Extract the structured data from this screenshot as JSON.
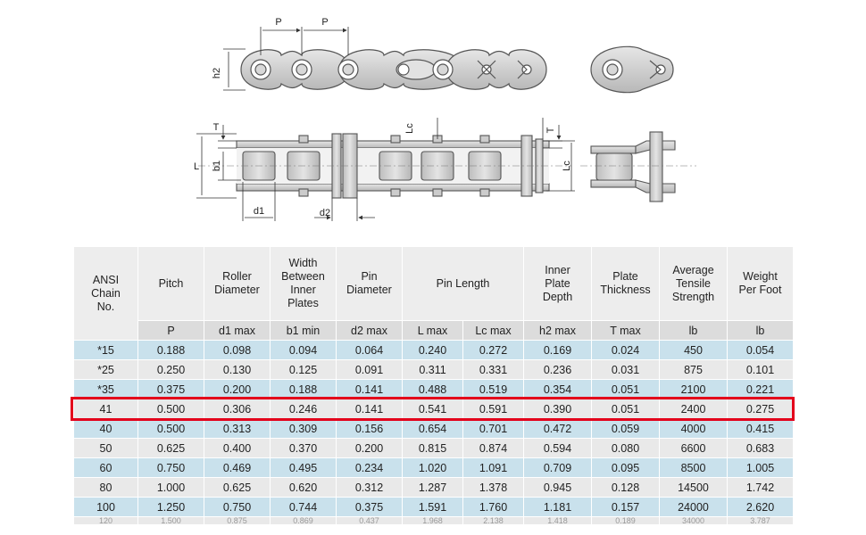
{
  "diagram": {
    "labels": {
      "pitch_1": "P",
      "pitch_2": "P",
      "h2": "h2",
      "T_left": "T",
      "L": "L",
      "b1": "b1",
      "d1": "d1",
      "d2": "d2",
      "Lc_top": "Lc",
      "T_right": "T",
      "Lc_right": "Lc"
    }
  },
  "table": {
    "headers": [
      {
        "key": "ansi",
        "label": "ANSI\nChain\nNo."
      },
      {
        "key": "pitch",
        "label": "Pitch"
      },
      {
        "key": "roller",
        "label": "Roller\nDiameter"
      },
      {
        "key": "width",
        "label": "Width\nBetween\nInner\nPlates"
      },
      {
        "key": "pin",
        "label": "Pin\nDiameter"
      },
      {
        "key": "pinlen",
        "label": "Pin Length"
      },
      {
        "key": "depth",
        "label": "Inner\nPlate\nDepth"
      },
      {
        "key": "thick",
        "label": "Plate\nThickness"
      },
      {
        "key": "tensile",
        "label": "Average\nTensile\nStrength"
      },
      {
        "key": "weight",
        "label": "Weight\nPer Foot"
      }
    ],
    "units": [
      "P",
      "d1 max",
      "b1 min",
      "d2 max",
      "L max",
      "Lc max",
      "h2 max",
      "T max",
      "lb",
      "lb"
    ],
    "rows": [
      [
        "*15",
        "0.188",
        "0.098",
        "0.094",
        "0.064",
        "0.240",
        "0.272",
        "0.169",
        "0.024",
        "450",
        "0.054"
      ],
      [
        "*25",
        "0.250",
        "0.130",
        "0.125",
        "0.091",
        "0.311",
        "0.331",
        "0.236",
        "0.031",
        "875",
        "0.101"
      ],
      [
        "*35",
        "0.375",
        "0.200",
        "0.188",
        "0.141",
        "0.488",
        "0.519",
        "0.354",
        "0.051",
        "2100",
        "0.221"
      ],
      [
        "41",
        "0.500",
        "0.306",
        "0.246",
        "0.141",
        "0.541",
        "0.591",
        "0.390",
        "0.051",
        "2400",
        "0.275"
      ],
      [
        "40",
        "0.500",
        "0.313",
        "0.309",
        "0.156",
        "0.654",
        "0.701",
        "0.472",
        "0.059",
        "4000",
        "0.415"
      ],
      [
        "50",
        "0.625",
        "0.400",
        "0.370",
        "0.200",
        "0.815",
        "0.874",
        "0.594",
        "0.080",
        "6600",
        "0.683"
      ],
      [
        "60",
        "0.750",
        "0.469",
        "0.495",
        "0.234",
        "1.020",
        "1.091",
        "0.709",
        "0.095",
        "8500",
        "1.005"
      ],
      [
        "80",
        "1.000",
        "0.625",
        "0.620",
        "0.312",
        "1.287",
        "1.378",
        "0.945",
        "0.128",
        "14500",
        "1.742"
      ],
      [
        "100",
        "1.250",
        "0.750",
        "0.744",
        "0.375",
        "1.591",
        "1.760",
        "1.181",
        "0.157",
        "24000",
        "2.620"
      ]
    ],
    "highlighted_row": "41",
    "partial_row": [
      "120",
      "1.500",
      "0.875",
      "0.869",
      "0.437",
      "1.968",
      "2.138",
      "1.418",
      "0.189",
      "34000",
      "3.787"
    ]
  }
}
